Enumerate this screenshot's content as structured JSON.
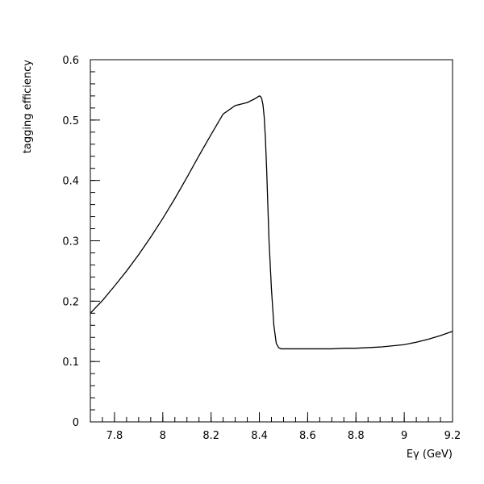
{
  "chart_data": {
    "type": "line",
    "title": "",
    "xlabel": "Eγ (GeV)",
    "ylabel": "tagging efficiency",
    "xlim": [
      7.7,
      9.2
    ],
    "ylim": [
      0,
      0.6
    ],
    "x_ticks": [
      7.8,
      8.0,
      8.2,
      8.4,
      8.6,
      8.8,
      9.0,
      9.2
    ],
    "x_tick_labels": [
      "7.8",
      "8",
      "8.2",
      "8.4",
      "8.6",
      "8.8",
      "9",
      "9.2"
    ],
    "y_ticks": [
      0,
      0.1,
      0.2,
      0.3,
      0.4,
      0.5,
      0.6
    ],
    "y_tick_labels": [
      "0",
      "0.1",
      "0.2",
      "0.3",
      "0.4",
      "0.5",
      "0.6"
    ],
    "grid": false,
    "line_color": "#000000",
    "series": [
      {
        "x": [
          7.7,
          7.75,
          7.8,
          7.85,
          7.9,
          7.95,
          8.0,
          8.05,
          8.1,
          8.15,
          8.2,
          8.25,
          8.3,
          8.35,
          8.38,
          8.4,
          8.405,
          8.41,
          8.415,
          8.42,
          8.425,
          8.43,
          8.435,
          8.44,
          8.45,
          8.46,
          8.47,
          8.48,
          8.49,
          8.5,
          8.55,
          8.6,
          8.65,
          8.7,
          8.75,
          8.8,
          8.85,
          8.9,
          8.95,
          9.0,
          9.05,
          9.1,
          9.15,
          9.2
        ],
        "y": [
          0.18,
          0.201,
          0.225,
          0.25,
          0.277,
          0.306,
          0.337,
          0.37,
          0.405,
          0.441,
          0.476,
          0.51,
          0.524,
          0.529,
          0.535,
          0.54,
          0.539,
          0.535,
          0.525,
          0.505,
          0.47,
          0.42,
          0.36,
          0.3,
          0.22,
          0.16,
          0.13,
          0.123,
          0.121,
          0.121,
          0.121,
          0.121,
          0.121,
          0.121,
          0.122,
          0.122,
          0.123,
          0.124,
          0.126,
          0.128,
          0.132,
          0.137,
          0.143,
          0.15
        ]
      }
    ]
  }
}
